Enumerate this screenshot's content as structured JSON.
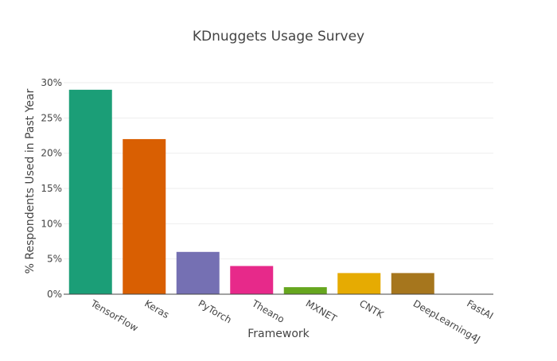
{
  "chart_data": {
    "type": "bar",
    "title": "KDnuggets Usage Survey",
    "xlabel": "Framework",
    "ylabel": "% Respondents Used in Past Year",
    "categories": [
      "TensorFlow",
      "Keras",
      "PyTorch",
      "Theano",
      "MXNET",
      "CNTK",
      "DeepLearning4J",
      "FastAI"
    ],
    "values": [
      29,
      22,
      6,
      4,
      1,
      3,
      3,
      0
    ],
    "colors": [
      "#1b9e77",
      "#d95f02",
      "#7570b3",
      "#e7298a",
      "#66a61e",
      "#e6ab02",
      "#a6761d",
      "#666666"
    ],
    "ylim": [
      0,
      30
    ],
    "yticks": [
      0,
      5,
      10,
      15,
      20,
      25,
      30
    ],
    "ytick_labels": [
      "0%",
      "5%",
      "10%",
      "15%",
      "20%",
      "25%",
      "30%"
    ],
    "grid": true,
    "legend": "none"
  }
}
